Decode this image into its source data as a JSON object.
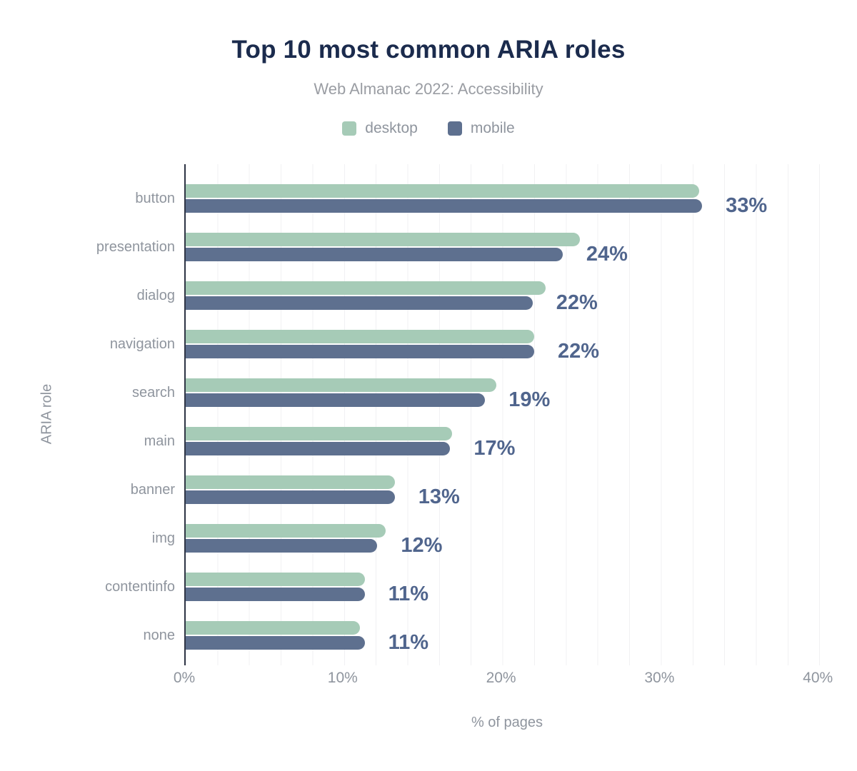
{
  "title": "Top 10 most common ARIA roles",
  "subtitle": "Web Almanac 2022: Accessibility",
  "legend": {
    "items": [
      {
        "label": "desktop",
        "color": "#a6cbb7"
      },
      {
        "label": "mobile",
        "color": "#5e708f"
      }
    ]
  },
  "x_axis": {
    "title": "% of pages",
    "ticks": [
      {
        "label": "0%",
        "value": 0
      },
      {
        "label": "10%",
        "value": 10
      },
      {
        "label": "20%",
        "value": 20
      },
      {
        "label": "30%",
        "value": 30
      },
      {
        "label": "40%",
        "value": 40
      }
    ],
    "max": 40.8,
    "gridline_step_pct": 2
  },
  "y_axis": {
    "title": "ARIA role"
  },
  "chart_data": {
    "type": "bar",
    "orientation": "horizontal",
    "title": "Top 10 most common ARIA roles",
    "subtitle": "Web Almanac 2022: Accessibility",
    "xlabel": "% of pages",
    "ylabel": "ARIA role",
    "xlim": [
      0,
      40.8
    ],
    "grid": "vertical, every 2%",
    "legend_position": "top",
    "categories": [
      "button",
      "presentation",
      "dialog",
      "navigation",
      "search",
      "main",
      "banner",
      "img",
      "contentinfo",
      "none"
    ],
    "series": [
      {
        "name": "desktop",
        "color": "#a6cbb7",
        "values": [
          32.4,
          24.9,
          22.7,
          22.0,
          19.6,
          16.8,
          13.2,
          12.6,
          11.3,
          11.0
        ]
      },
      {
        "name": "mobile",
        "color": "#5e708f",
        "values": [
          32.6,
          23.8,
          21.9,
          22.0,
          18.9,
          16.7,
          13.2,
          12.1,
          11.3,
          11.3
        ]
      }
    ],
    "data_labels": [
      "33%",
      "24%",
      "22%",
      "22%",
      "19%",
      "17%",
      "13%",
      "12%",
      "11%",
      "11%"
    ]
  },
  "colors": {
    "title_text": "#1b2b4d",
    "muted_text": "#8f959e",
    "subtitle_text": "#9a9da3",
    "value_label_text": "#50658d",
    "axis_line": "#303646",
    "gridline": "#f1f1f3",
    "background": "#ffffff"
  }
}
